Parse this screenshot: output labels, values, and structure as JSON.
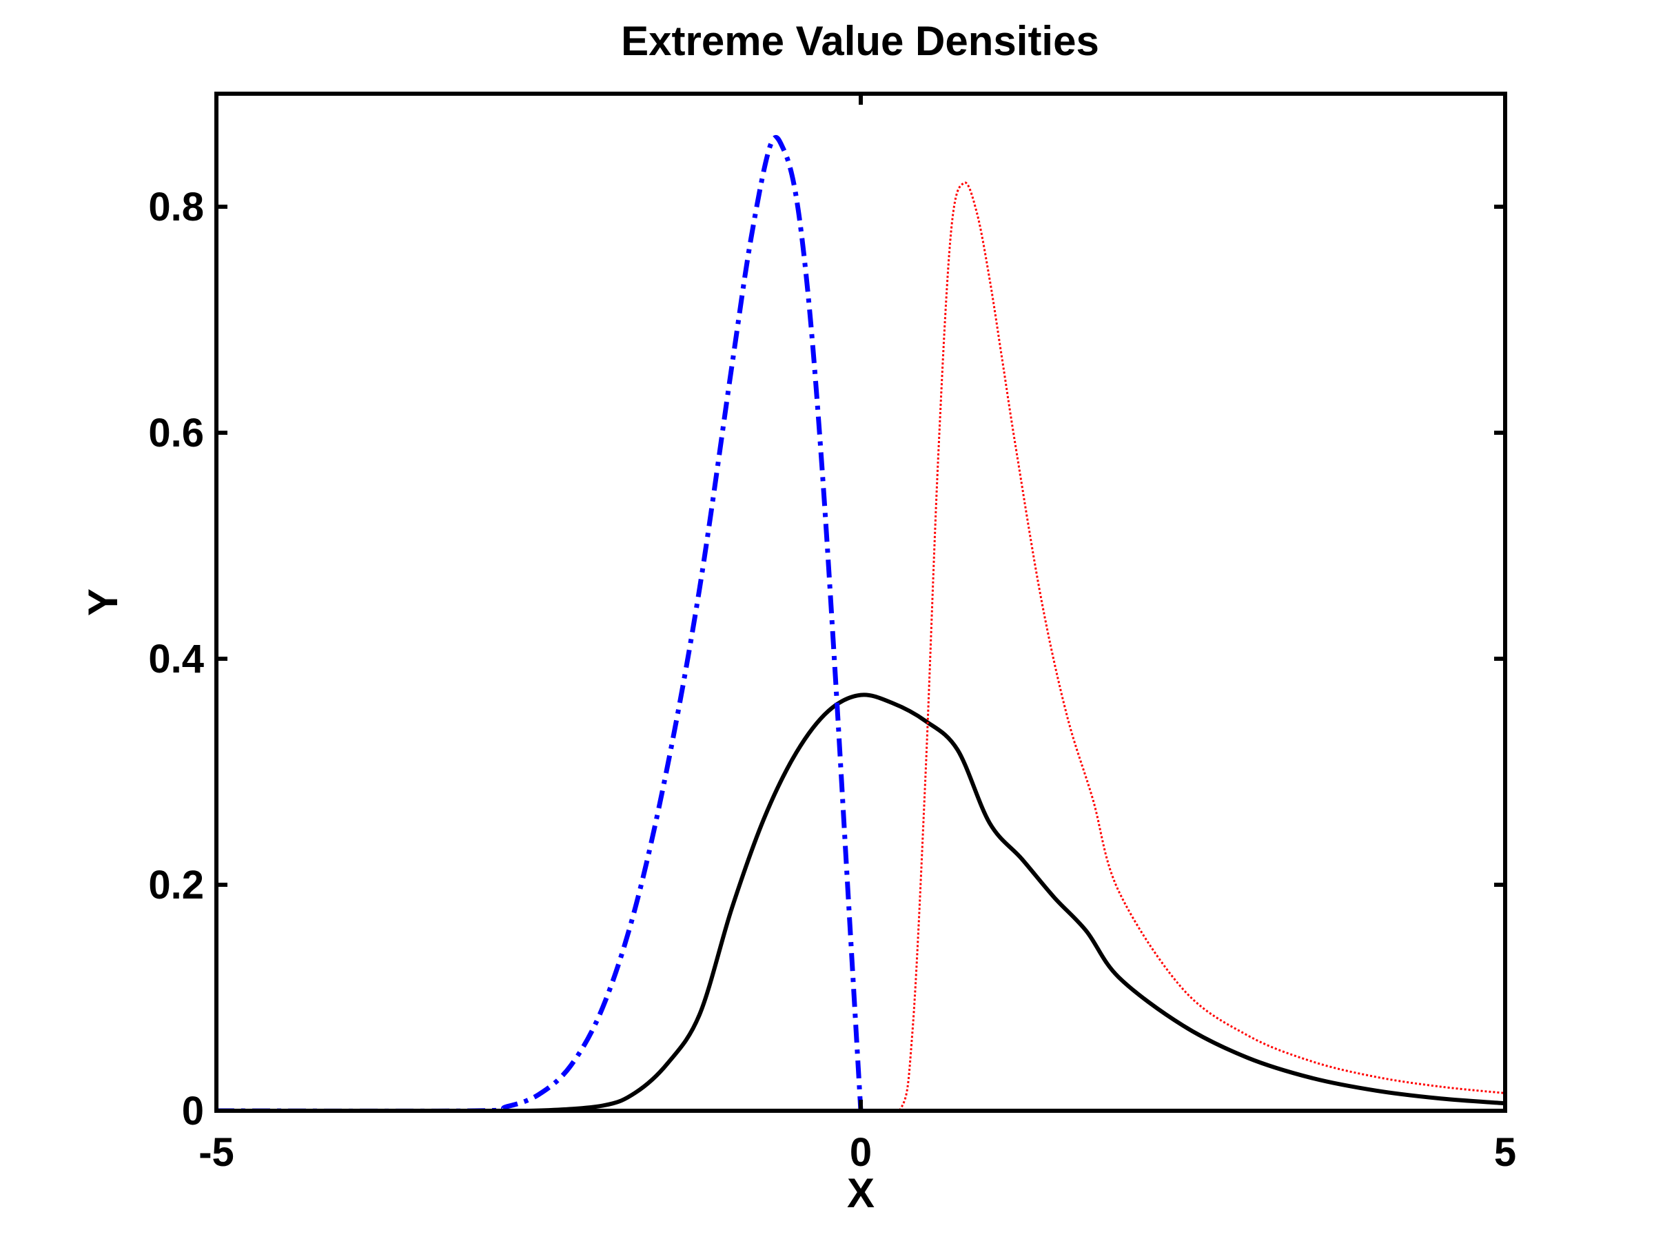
{
  "chart_data": {
    "type": "line",
    "title": "Extreme Value Densities",
    "xlabel": "X",
    "ylabel": "Y",
    "xlim": [
      -5,
      5
    ],
    "ylim": [
      0,
      0.9
    ],
    "xticks": [
      -5,
      0,
      5
    ],
    "yticks": [
      0,
      0.2,
      0.4,
      0.6,
      0.8
    ],
    "xtick_labels": [
      "-5",
      "0",
      "5"
    ],
    "ytick_labels": [
      "0",
      "0.2",
      "0.4",
      "0.6",
      "0.8"
    ],
    "grid": false,
    "legend": "none",
    "series": [
      {
        "color": "#000000",
        "style": "solid",
        "x": [
          -5,
          -4,
          -3,
          -2.5,
          -2,
          -1.75,
          -1.5,
          -1.25,
          -1,
          -0.75,
          -0.5,
          -0.25,
          0,
          0.25,
          0.5,
          0.75,
          1,
          1.25,
          1.5,
          1.75,
          2,
          2.5,
          3,
          3.5,
          4,
          4.5,
          5
        ],
        "y": [
          0,
          0,
          0,
          0.0002,
          0.0046,
          0.0159,
          0.0418,
          0.0854,
          0.1794,
          0.2588,
          0.317,
          0.3539,
          0.3679,
          0.3606,
          0.3451,
          0.3196,
          0.2546,
          0.2228,
          0.1889,
          0.1591,
          0.1183,
          0.0754,
          0.047,
          0.029,
          0.0178,
          0.0108,
          0.0066
        ]
      },
      {
        "color": "#0000ff",
        "style": "dash-dot",
        "x": [
          -5,
          -3,
          -2.75,
          -2.5,
          -2.25,
          -2,
          -1.75,
          -1.5,
          -1.25,
          -1,
          -0.85,
          -0.7,
          -0.6,
          -0.5,
          -0.4,
          -0.3,
          -0.2,
          -0.1,
          0
        ],
        "y": [
          0,
          0,
          0.0036,
          0.0143,
          0.04,
          0.0921,
          0.1795,
          0.3048,
          0.4627,
          0.6592,
          0.773,
          0.8548,
          0.851,
          0.808,
          0.712,
          0.568,
          0.39,
          0.195,
          0
        ]
      },
      {
        "color": "#ff0000",
        "style": "dotted",
        "x": [
          0,
          0.3,
          0.4,
          0.5,
          0.6,
          0.7,
          0.8,
          0.9,
          1,
          1.1,
          1.2,
          1.4,
          1.6,
          1.8,
          2,
          2.5,
          3,
          3.5,
          4,
          4.5,
          5
        ],
        "y": [
          0,
          0.0002,
          0.0684,
          0.2907,
          0.5762,
          0.7772,
          0.821,
          0.795,
          0.7358,
          0.6628,
          0.589,
          0.453,
          0.3497,
          0.276,
          0.1947,
          0.1076,
          0.0668,
          0.0437,
          0.0299,
          0.0213,
          0.0156
        ]
      }
    ]
  }
}
